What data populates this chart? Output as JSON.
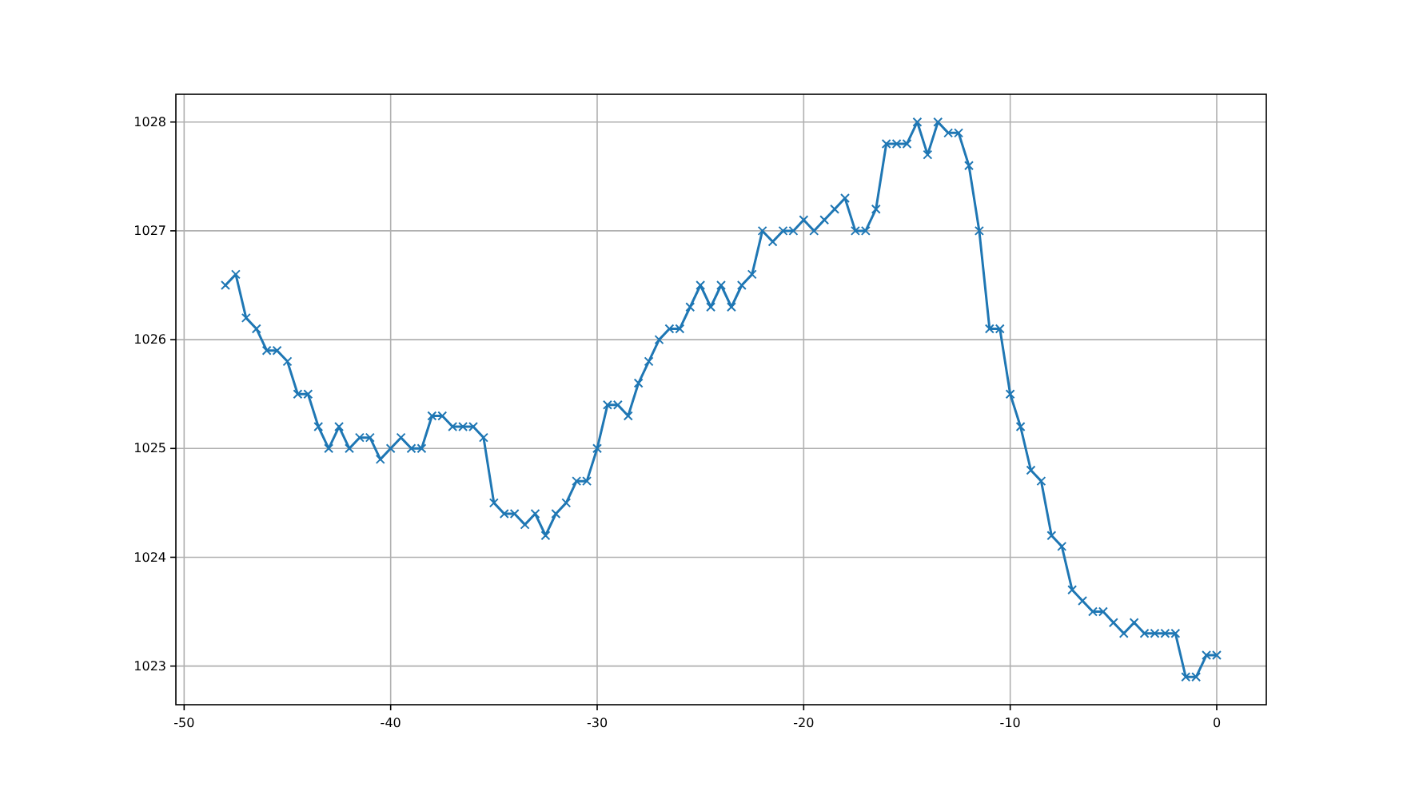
{
  "chart_data": {
    "type": "line",
    "x": [
      -48,
      -47.5,
      -47,
      -46.5,
      -46,
      -45.5,
      -45,
      -44.5,
      -44,
      -43.5,
      -43,
      -42.5,
      -42,
      -41.5,
      -41,
      -40.5,
      -40,
      -39.5,
      -39,
      -38.5,
      -38,
      -37.5,
      -37,
      -36.5,
      -36,
      -35.5,
      -35,
      -34.5,
      -34,
      -33.5,
      -33,
      -32.5,
      -32,
      -31.5,
      -31,
      -30.5,
      -30,
      -29.5,
      -29,
      -28.5,
      -28,
      -27.5,
      -27,
      -26.5,
      -26,
      -25.5,
      -25,
      -24.5,
      -24,
      -23.5,
      -23,
      -22.5,
      -22,
      -21.5,
      -21,
      -20.5,
      -20,
      -19.5,
      -19,
      -18.5,
      -18,
      -17.5,
      -17,
      -16.5,
      -16,
      -15.5,
      -15,
      -14.5,
      -14,
      -13.5,
      -13,
      -12.5,
      -12,
      -11.5,
      -11,
      -10.5,
      -10,
      -9.5,
      -9,
      -8.5,
      -8,
      -7.5,
      -7,
      -6.5,
      -6,
      -5.5,
      -5,
      -4.5,
      -4,
      -3.5,
      -3,
      -2.5,
      -2,
      -1.5,
      -1,
      -0.5,
      0
    ],
    "series": [
      {
        "color": "#1f77b4",
        "values": [
          1026.5,
          1026.6,
          1026.2,
          1026.1,
          1025.9,
          1025.9,
          1025.8,
          1025.5,
          1025.5,
          1025.2,
          1025.0,
          1025.2,
          1025.0,
          1025.1,
          1025.1,
          1024.9,
          1025.0,
          1025.1,
          1025.0,
          1025.0,
          1025.3,
          1025.3,
          1025.2,
          1025.2,
          1025.2,
          1025.1,
          1024.5,
          1024.4,
          1024.4,
          1024.3,
          1024.4,
          1024.2,
          1024.4,
          1024.5,
          1024.7,
          1024.7,
          1025.0,
          1025.4,
          1025.4,
          1025.3,
          1025.6,
          1025.8,
          1026.0,
          1026.1,
          1026.1,
          1026.3,
          1026.5,
          1026.3,
          1026.5,
          1026.3,
          1026.5,
          1026.6,
          1027.0,
          1026.9,
          1027.0,
          1027.0,
          1027.1,
          1027.0,
          1027.1,
          1027.2,
          1027.3,
          1027.0,
          1027.0,
          1027.2,
          1027.8,
          1027.8,
          1027.8,
          1028.0,
          1027.7,
          1028.0,
          1027.9,
          1027.9,
          1027.6,
          1027.0,
          1026.1,
          1026.1,
          1025.5,
          1025.2,
          1024.8,
          1024.7,
          1024.2,
          1024.1,
          1023.7,
          1023.6,
          1023.5,
          1023.5,
          1023.4,
          1023.3,
          1023.4,
          1023.3,
          1023.3,
          1023.3,
          1023.3,
          1022.9,
          1022.9,
          1023.1,
          1023.1
        ]
      }
    ],
    "xlim": [
      -50.4,
      2.4
    ],
    "xticks": [
      -50,
      -40,
      -30,
      -20,
      -10,
      0
    ],
    "ylim": [
      1022.645,
      1028.255
    ],
    "yticks": [
      1023,
      1024,
      1025,
      1026,
      1027,
      1028
    ],
    "grid": true,
    "marker": "cross",
    "line_style": "solid"
  }
}
